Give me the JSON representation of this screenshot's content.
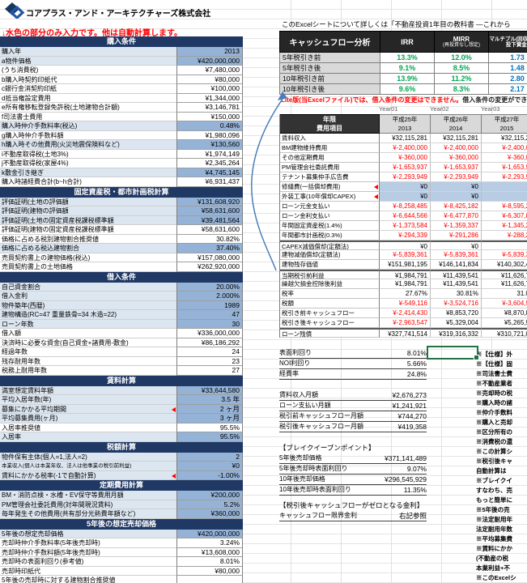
{
  "header": {
    "company": "コアプラス・アンド・アーキテクチャーズ株式会社",
    "input_note": "↓水色の部分のみ入力です。他は自動計算します。",
    "excel_note": "このExcelシートについて詳しくは「不動産投資1年目の教科書 ―これから",
    "lite_note_red": "Lite版(当Excelファイル)では、借入条件の変更はできません。",
    "lite_note_black": "借入条件の変更ができるフル版"
  },
  "colors": {
    "section_header": "#1F3864",
    "input_label_bg": "#DCE6F1",
    "input_value_bg": "#95B3D7",
    "year_input_bg": "#B8CCE4",
    "negative_text": "#FF0000",
    "irr_green": "#00A651",
    "multiple_blue": "#0070C0",
    "selection_green": "#217346"
  },
  "cf_table": {
    "title": "キャッシュフロー分析",
    "col_irr": "IRR",
    "col_mirr": "MIRR",
    "col_mirr_sub": "(再投資なし想定)",
    "col_mult": "マルチプル(回収額/期間投下資金)",
    "rows": [
      {
        "label": "5年税引き前",
        "irr": "13.3%",
        "mirr": "12.0%",
        "mult": "1.73"
      },
      {
        "label": "5年税引き後",
        "irr": "9.1%",
        "mirr": "8.5%",
        "mult": "1.48"
      },
      {
        "label": "10年税引き前",
        "irr": "13.9%",
        "mirr": "11.2%",
        "mult": "2.80"
      },
      {
        "label": "10年税引き後",
        "irr": "9.6%",
        "mirr": "8.3%",
        "mult": "2.17"
      }
    ]
  },
  "left_sections": [
    {
      "title": "購入条件",
      "rows": [
        {
          "label": "購入年",
          "value": "2013",
          "input": true
        },
        {
          "label": "a物件価格",
          "value": "¥420,000,000",
          "input": true
        },
        {
          "label": "(うち消費税)",
          "value": "¥7,480,000"
        },
        {
          "label": "b購入時契約印紙代",
          "value": "¥80,000"
        },
        {
          "label": "c銀行金消契約印紙",
          "value": "¥100,000"
        },
        {
          "label": "d抵当権設定費用",
          "value": "¥1,344,000"
        },
        {
          "label": "e所有権移転登録免許税(土地建物合計額)",
          "value": "¥3,146,781"
        },
        {
          "label": "f司法書士費用",
          "value": "¥150,000"
        },
        {
          "label": "購入時仲介手数料率(税込)",
          "value": "0.48%",
          "input": true
        },
        {
          "label": "g購入時仲介手数料額",
          "value": "¥1,980,096"
        },
        {
          "label": "h購入時その他費用(火災地震保険料など)",
          "value": "¥130,560",
          "input": true
        },
        {
          "label": "i不動産取得税(土地3%)",
          "value": "¥1,974,149"
        },
        {
          "label": "j不動産取得税(家屋4%)",
          "value": "¥2,345,264"
        },
        {
          "label": "k敷金引き継ぎ",
          "value": "¥4,745,145",
          "input": true
        },
        {
          "label": "購入時諸経費合計(b~h合計)",
          "value": "¥6,931,437"
        }
      ]
    },
    {
      "title": "固定資産税・都市計画税計算",
      "rows": [
        {
          "label": "評価証明(土地の評価額",
          "value": "¥131,608,920",
          "input": true
        },
        {
          "label": "評価証明(建物の評価額",
          "value": "¥58,631,600",
          "input": true
        },
        {
          "label": "評価証明(土地の固定資産税課税標準額",
          "value": "¥39,481,564",
          "input": true
        },
        {
          "label": "評価証明(建物の固定資産税課税標準額",
          "value": "¥58,631,600"
        },
        {
          "label": "価格に占める税別建物割合推奨値",
          "value": "30.82%"
        },
        {
          "label": "価格に占める税込建物割合",
          "value": "37.40%",
          "input": true
        },
        {
          "label": "売買契約書上の建物価格(税込)",
          "value": "¥157,080,000"
        },
        {
          "label": "売買契約書上の土地価格",
          "value": "¥262,920,000"
        }
      ]
    },
    {
      "title": "借入条件",
      "rows": [
        {
          "label": "自己資金割合",
          "value": "20.00%",
          "input": true
        },
        {
          "label": "借入金利",
          "value": "2.000%",
          "input": true
        },
        {
          "label": "物件築年(西暦)",
          "value": "1989",
          "input": true
        },
        {
          "label": "建物構造(RC=47 重量鉄骨=34 木造=22)",
          "value": "47",
          "input": true
        },
        {
          "label": "ローン年数",
          "value": "30",
          "input": true
        },
        {
          "label": "借入額",
          "value": "¥336,000,000"
        },
        {
          "label": "決済時に必要な資金(自己資金+諸費用-敷金)",
          "value": "¥86,186,292"
        },
        {
          "label": "経過年数",
          "value": "24"
        },
        {
          "label": "残存耐用年数",
          "value": "23"
        },
        {
          "label": "税務上耐用年数",
          "value": "27"
        }
      ]
    },
    {
      "title": "賃料計算",
      "rows": [
        {
          "label": "満室想定賃料年額",
          "value": "¥33,644,580",
          "input": true
        },
        {
          "label": "平均入居年数(年)",
          "value": "3.5 年",
          "input": true
        },
        {
          "label": "募集にかかる平均期間",
          "value": "2 ヶ月",
          "input": true,
          "marker": true
        },
        {
          "label": "平均募集費用(ヶ月)",
          "value": "3 ヶ月",
          "input": true
        },
        {
          "label": "入居率推奨値",
          "value": "95.5%"
        },
        {
          "label": "入居率",
          "value": "95.5%",
          "input": true
        }
      ]
    },
    {
      "title": "税額計算",
      "rows": [
        {
          "label": "物件保有主体(個人=1,法人=2)",
          "value": "2",
          "input": true
        },
        {
          "label": "本業収入(個人は本業年収、法人は他事業の税引前利益)",
          "value": "¥0",
          "input": true,
          "small": true
        },
        {
          "label": "賃料にかかる税率(-1で自動計算)",
          "value": "-1.00%",
          "input": true,
          "marker": true
        }
      ]
    },
    {
      "title": "定期費用計算",
      "rows": [
        {
          "label": "BM・消防点検・水槽・EV保守等費用月額",
          "value": "¥200,000",
          "input": true
        },
        {
          "label": "PM管理会社委託費用(対年間現況賃料)",
          "value": "5.2%",
          "input": true
        },
        {
          "label": "毎年発生その他費用(共有部分光熱費年額など)",
          "value": "¥360,000",
          "input": true
        }
      ]
    },
    {
      "title": "5年後の想定売却価格",
      "rows": [
        {
          "label": "5年後の想定売却価格",
          "value": "¥420,000,000",
          "input": true
        },
        {
          "label": "売却時仲介手数料率(5年後売却時)",
          "value": "3.24%"
        },
        {
          "label": "売却時仲介手数料額(5年後売却時)",
          "value": "¥13,608,000"
        },
        {
          "label": "売却時の表面利回り(参考値)",
          "value": "8.01%"
        },
        {
          "label": "売却時印紙代",
          "value": "¥80,000"
        },
        {
          "label": "5年後の売却時に対する建物割合推奨値",
          "value": ""
        }
      ]
    }
  ],
  "year_table": {
    "year_tags": [
      "Year01",
      "Year02",
      "Year03"
    ],
    "header_line1": "年限",
    "header_line2": "費用項目",
    "columns": [
      {
        "era": "平成25年",
        "year": "2013"
      },
      {
        "era": "平成26年",
        "year": "2014"
      },
      {
        "era": "平成27年",
        "year": "2015"
      }
    ],
    "rows": [
      {
        "label": "賃料収入",
        "v": [
          "¥32,115,281",
          "¥32,115,281",
          "¥32,115,2"
        ]
      },
      {
        "label": "BM建物維持費用",
        "v": [
          "¥-2,400,000",
          "¥-2,400,000",
          "¥-2,400,0"
        ]
      },
      {
        "label": "その他定期費用",
        "v": [
          "¥-360,000",
          "¥-360,000",
          "¥-360,0"
        ]
      },
      {
        "label": "PM管理会社委託費用",
        "v": [
          "¥-1,653,937",
          "¥-1,653,937",
          "¥-1,653,9"
        ]
      },
      {
        "label": "テナント募集仲手広告費",
        "v": [
          "¥-2,293,949",
          "¥-2,293,949",
          "¥-2,293,9"
        ]
      },
      {
        "label": "修繕費(一括償却費用)",
        "v": [
          "¥0",
          "¥0",
          ""
        ],
        "input": true,
        "marker": true
      },
      {
        "label": "外装工事(10年償却CAPEX)",
        "v": [
          "¥0",
          "¥0",
          ""
        ],
        "input": true,
        "marker": true
      },
      {
        "label": "ローン元金支払い",
        "v": [
          "¥-8,258,485",
          "¥-8,425,182",
          "¥-8,595,2"
        ]
      },
      {
        "label": "ローン金利支払い",
        "v": [
          "¥-6,644,566",
          "¥-6,477,870",
          "¥-6,307,8"
        ]
      },
      {
        "label": "年間固定資産税(1.4%)",
        "v": [
          "¥-1,373,584",
          "¥-1,359,337",
          "¥-1,345,2"
        ]
      },
      {
        "label": "年間都市計画税(0.3%)",
        "v": [
          "¥-294,339",
          "¥-291,286",
          "¥-288,2"
        ]
      },
      {
        "label": "CAPEX減価償却(定額法)",
        "v": [
          "¥0",
          "¥0",
          ""
        ],
        "sep": true
      },
      {
        "label": "建物減価償却(定額法)",
        "v": [
          "¥-5,839,361",
          "¥-5,839,361",
          "¥-5,839,3"
        ]
      },
      {
        "label": "建物残存価値",
        "v": [
          "¥151,981,195",
          "¥146,141,834",
          "¥140,302,4"
        ]
      },
      {
        "label": "当期税引前利益",
        "v": [
          "¥1,984,791",
          "¥11,439,541",
          "¥11,626,7"
        ],
        "sep": true
      },
      {
        "label": "繰越欠損金控除後利益",
        "v": [
          "¥1,984,791",
          "¥11,439,541",
          "¥11,626,7"
        ]
      },
      {
        "label": "税率",
        "v": [
          "27.67%",
          "30.81%",
          "31.0"
        ]
      },
      {
        "label": "税額",
        "v": [
          "¥-549,116",
          "¥-3,524,716",
          "¥-3,604,9"
        ]
      },
      {
        "label": "税引き前キャッシュフロー",
        "v": [
          "¥-2,414,430",
          "¥8,853,720",
          "¥8,870,8"
        ]
      },
      {
        "label": "税引き後キャッシュフロー",
        "v": [
          "¥-2,963,547",
          "¥5,329,004",
          "¥5,265,9"
        ]
      },
      {
        "label": "ローン残債",
        "v": [
          "¥327,741,514",
          "¥319,316,332",
          "¥310,721,0"
        ],
        "sep": true
      }
    ]
  },
  "summary": [
    {
      "label": "表面利回り",
      "value": "8.01%"
    },
    {
      "label": "NOI利回り",
      "value": "5.66%"
    },
    {
      "label": "経費率",
      "value": "24.8%"
    },
    {
      "label": "賃料収入月額",
      "value": "¥2,676,273",
      "gap": true
    },
    {
      "label": "ローン支払い月額",
      "value": "¥1,241,921"
    },
    {
      "label": "税引前キャッシュフロー月額",
      "value": "¥744,270"
    },
    {
      "label": "税引後キャッシュフロー月額",
      "value": "¥419,358"
    }
  ],
  "breakeven": {
    "title": "【ブレイクイーブンポイント】",
    "rows": [
      {
        "label": "5年後売却価格",
        "value": "¥371,141,489"
      },
      {
        "label": "5年後売却時表面利回り",
        "value": "9.07%"
      },
      {
        "label": "10年後売却価格",
        "value": "¥296,545,929"
      },
      {
        "label": "10年後売却時表面利回り",
        "value": "11.35%"
      }
    ]
  },
  "zero_cf": {
    "title": "【税引後キャッシュフローがゼロとなる金利】",
    "rows": [
      {
        "label": "キャッシュフロー限界金利",
        "value": "右記参照"
      }
    ]
  },
  "side_notes": [
    "※【仕様】外",
    "※【仕様】固",
    "※司法書士費",
    "※不動産業者",
    "※売却時の税",
    "※購入時の諸",
    "※仲介手数料",
    "※購入と売却",
    "※区分所有の",
    "※消費税の還",
    "※この計算シ",
    "※税引後キャ",
    "自動計算は",
    "※ブレイクイ",
    "すなわち、売",
    "もっと簡単に",
    "※5年後の売",
    "※法定耐用年",
    "法定耐用年数",
    "※平均募集費",
    "※賃料にかか",
    "(不動産の税",
    "本業利益+不",
    "※このExcelシ",
    "税の適用"
  ]
}
